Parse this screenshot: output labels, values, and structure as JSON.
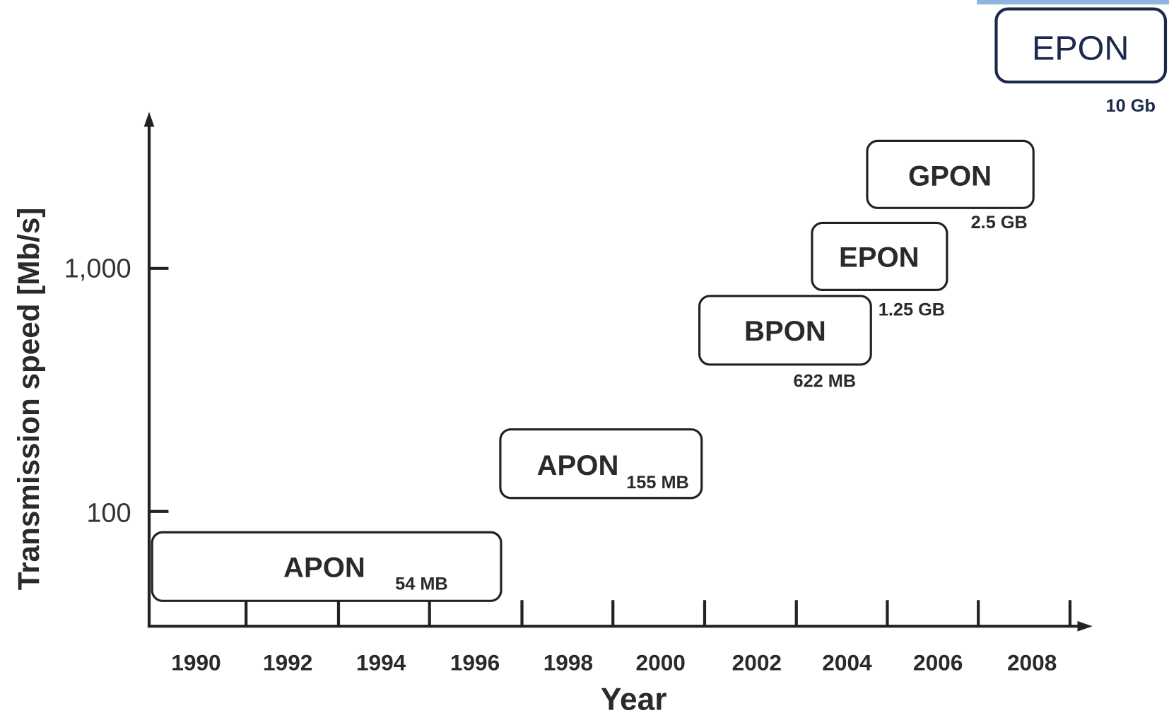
{
  "y_axis": {
    "label": "Transmission speed [Mb/s]",
    "ticks": [
      "100",
      "1,000"
    ]
  },
  "x_axis": {
    "label": "Year",
    "ticks": [
      "1990",
      "1992",
      "1994",
      "1996",
      "1998",
      "2000",
      "2002",
      "2004",
      "2006",
      "2008"
    ]
  },
  "nodes": [
    {
      "label": "APON",
      "speed": "54 MB"
    },
    {
      "label": "APON",
      "speed": "155 MB"
    },
    {
      "label": "BPON",
      "speed": "622 MB"
    },
    {
      "label": "EPON",
      "speed": "1.25 GB"
    },
    {
      "label": "GPON",
      "speed": "2.5 GB"
    },
    {
      "label": "EPON",
      "speed": "10 Gb"
    }
  ]
}
